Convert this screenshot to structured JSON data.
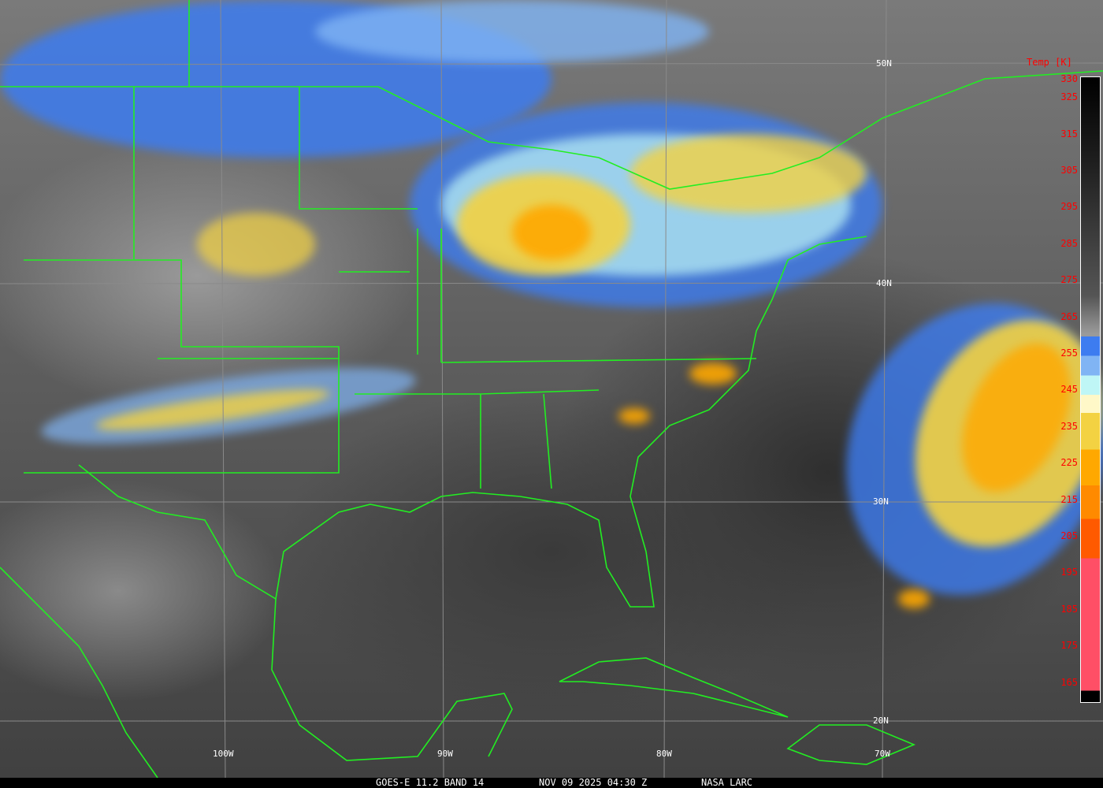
{
  "colorbar": {
    "title": "Temp [K]",
    "ticks": [
      "330",
      "325",
      "315",
      "305",
      "295",
      "285",
      "275",
      "265",
      "255",
      "245",
      "235",
      "225",
      "215",
      "205",
      "195",
      "185",
      "175",
      "165"
    ],
    "colors": [
      "#000000",
      "#9a9a9a",
      "#3d7cf0",
      "#80b4f4",
      "#bff6f6",
      "#fff8c8",
      "#f3d242",
      "#ffa800",
      "#ff8a00",
      "#ff5a00",
      "#ff4f66"
    ]
  },
  "grid": {
    "latitudes": [
      "50N",
      "40N",
      "30N",
      "20N"
    ],
    "longitudes": [
      "100W",
      "90W",
      "80W",
      "70W"
    ]
  },
  "footer": {
    "product": "GOES-E 11.2 BAND 14",
    "datetime": "NOV 09 2025 04:30 Z",
    "source": "NASA LARC"
  },
  "border_color": "#22ee22"
}
